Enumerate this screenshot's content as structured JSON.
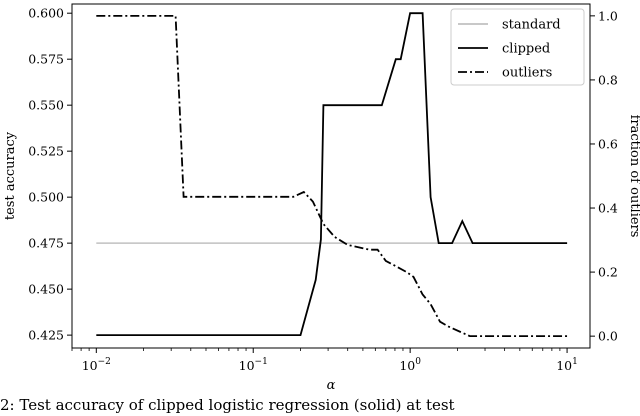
{
  "caption": "2: Test accuracy of clipped logistic regression (solid) at test",
  "chart_data": {
    "type": "line",
    "xlabel": "α",
    "ylabel": "test accuracy",
    "y2label": "fraction of outliers",
    "xscale": "log",
    "xlim": [
      0.007,
      14
    ],
    "ylim": [
      0.418,
      0.605
    ],
    "y2lim": [
      -0.037,
      1.037
    ],
    "x_ticks": [
      {
        "value": 0.01,
        "label": "10−2"
      },
      {
        "value": 0.1,
        "label": "10−1"
      },
      {
        "value": 1,
        "label": "100"
      },
      {
        "value": 10,
        "label": "101"
      }
    ],
    "y_ticks": [
      "0.425",
      "0.450",
      "0.475",
      "0.500",
      "0.525",
      "0.550",
      "0.575",
      "0.600"
    ],
    "y2_ticks": [
      "0.0",
      "0.2",
      "0.4",
      "0.6",
      "0.8",
      "1.0"
    ],
    "grid": false,
    "legend_position": "top-right",
    "series": [
      {
        "name": "standard",
        "axis": "left",
        "style": "solid",
        "color": "#c0c0c0",
        "x": [
          0.01,
          10
        ],
        "y": [
          0.475,
          0.475
        ]
      },
      {
        "name": "clipped",
        "axis": "left",
        "style": "solid",
        "color": "#000000",
        "x": [
          0.01,
          0.2,
          0.25,
          0.27,
          0.28,
          0.66,
          0.81,
          0.87,
          1.0,
          1.2,
          1.35,
          1.52,
          1.85,
          2.15,
          2.5,
          10
        ],
        "y": [
          0.425,
          0.425,
          0.455,
          0.477,
          0.55,
          0.55,
          0.575,
          0.575,
          0.6,
          0.6,
          0.5,
          0.475,
          0.475,
          0.487,
          0.475,
          0.475
        ]
      },
      {
        "name": "outliers",
        "axis": "right",
        "style": "dashdot",
        "color": "#000000",
        "x": [
          0.01,
          0.032,
          0.036,
          0.18,
          0.21,
          0.24,
          0.28,
          0.33,
          0.4,
          0.55,
          0.62,
          0.7,
          0.8,
          0.95,
          1.05,
          1.2,
          1.35,
          1.55,
          1.75,
          2.4,
          10
        ],
        "y": [
          1.0,
          1.0,
          0.435,
          0.435,
          0.45,
          0.42,
          0.35,
          0.31,
          0.285,
          0.27,
          0.27,
          0.235,
          0.22,
          0.2,
          0.185,
          0.13,
          0.1,
          0.045,
          0.03,
          0.0,
          0.0
        ]
      }
    ]
  }
}
